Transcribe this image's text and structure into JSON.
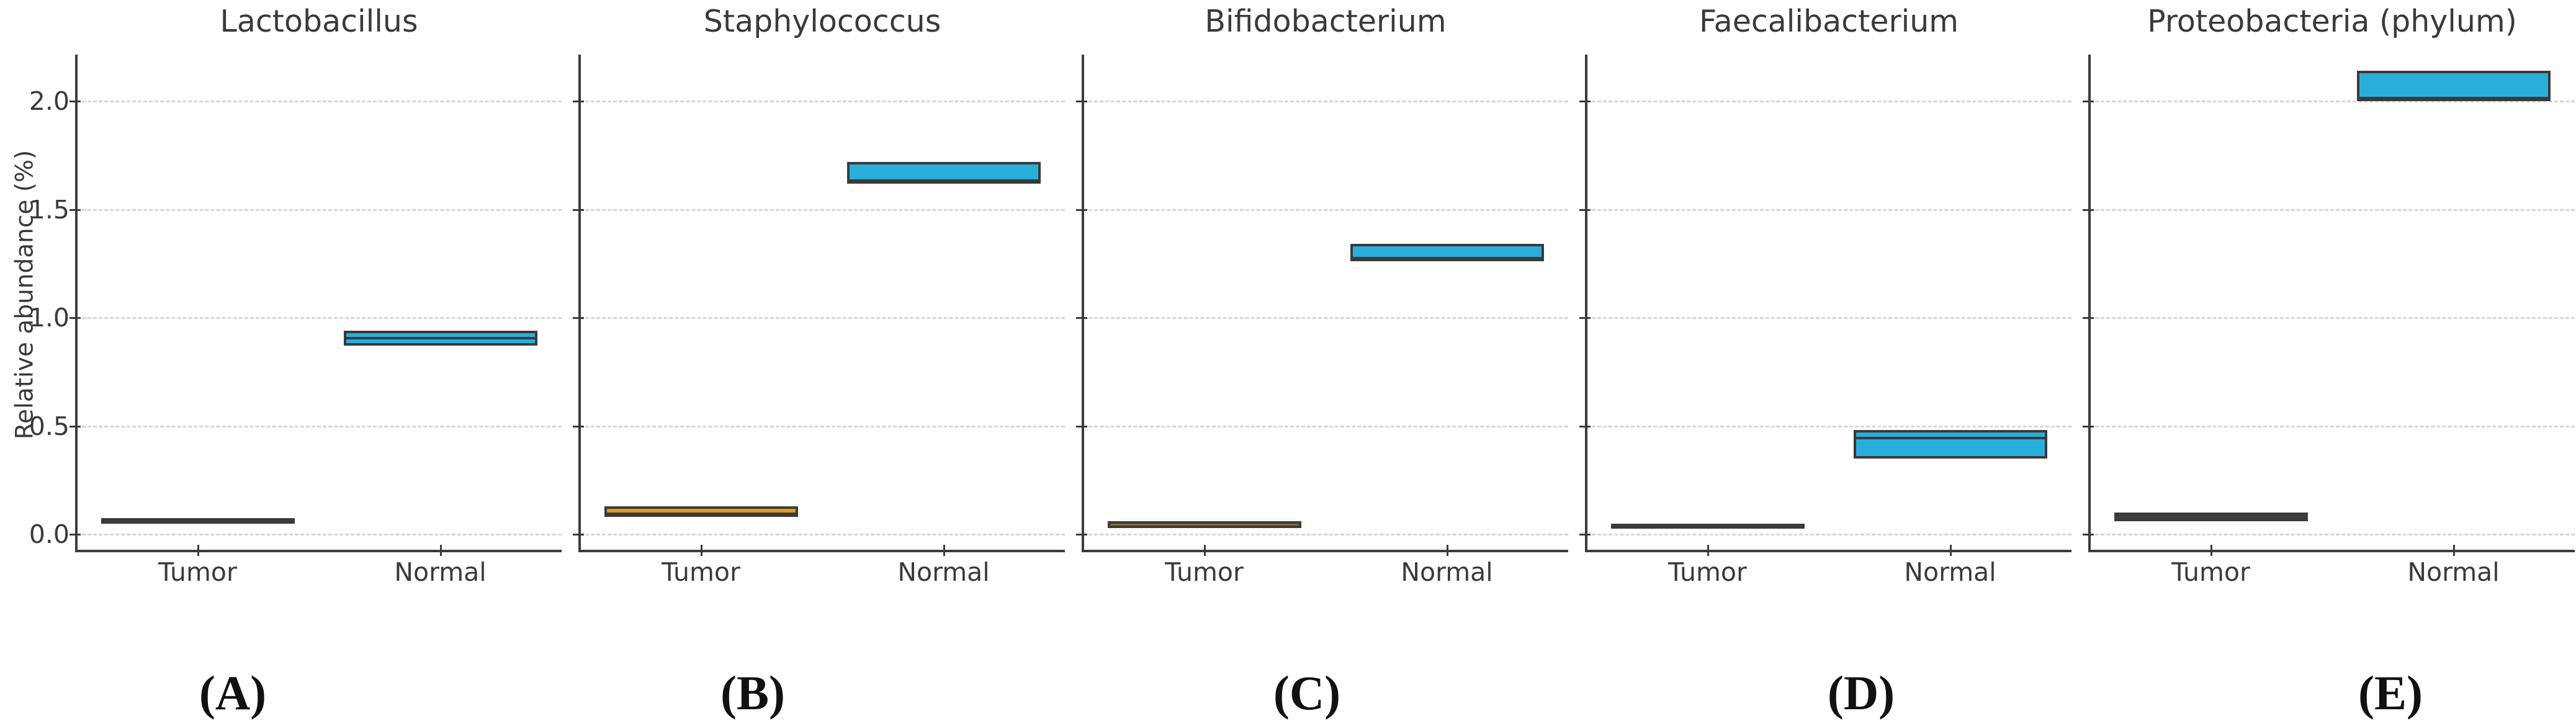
{
  "figure": {
    "ylabel": "Relative abundance (%)",
    "y_tick_labels": [
      "0.0",
      "0.5",
      "1.0",
      "1.5",
      "2.0"
    ],
    "x_categories": [
      "Tumor",
      "Normal"
    ],
    "colors": {
      "normal_box_fill": "#29AEDC",
      "tumor_box_fill_dark": "#3d3d3d",
      "tumor_box_fill_orange": "#E09B20",
      "tumor_box_fill_brown": "#8B6A2A",
      "box_border": "#3a3a3a",
      "gridline": "#d7d7d7",
      "spine": "#3c3c3c",
      "text": "#3a3a3a",
      "panel_letter": "#111111"
    }
  },
  "chart_data": [
    {
      "type": "box",
      "title": "Lactobacillus",
      "panel_label": "(A)",
      "categories": [
        "Tumor",
        "Normal"
      ],
      "ylabel": "Relative abundance (%)",
      "ylim": [
        -0.08,
        2.22
      ],
      "yticks": [
        0.0,
        0.5,
        1.0,
        1.5,
        2.0
      ],
      "grid": "horizontal-dashed",
      "legend": "none",
      "series": [
        {
          "name": "Tumor",
          "q1": 0.05,
          "median": 0.06,
          "q3": 0.075,
          "fill": "#3d3d3d"
        },
        {
          "name": "Normal",
          "q1": 0.87,
          "median": 0.91,
          "q3": 0.94,
          "fill": "#29AEDC"
        }
      ]
    },
    {
      "type": "box",
      "title": "Staphylococcus",
      "panel_label": "(B)",
      "categories": [
        "Tumor",
        "Normal"
      ],
      "ylabel": "Relative abundance (%)",
      "ylim": [
        -0.08,
        2.22
      ],
      "yticks": [
        0.0,
        0.5,
        1.0,
        1.5,
        2.0
      ],
      "grid": "horizontal-dashed",
      "legend": "none",
      "series": [
        {
          "name": "Tumor",
          "q1": 0.08,
          "median": 0.1,
          "q3": 0.13,
          "fill": "#E09B20"
        },
        {
          "name": "Normal",
          "q1": 1.62,
          "median": 1.64,
          "q3": 1.72,
          "fill": "#29AEDC"
        }
      ]
    },
    {
      "type": "box",
      "title": "Bifidobacterium",
      "panel_label": "(C)",
      "categories": [
        "Tumor",
        "Normal"
      ],
      "ylabel": "Relative abundance (%)",
      "ylim": [
        -0.08,
        2.22
      ],
      "yticks": [
        0.0,
        0.5,
        1.0,
        1.5,
        2.0
      ],
      "grid": "horizontal-dashed",
      "legend": "none",
      "series": [
        {
          "name": "Tumor",
          "q1": 0.03,
          "median": 0.045,
          "q3": 0.06,
          "fill": "#8B6A2A"
        },
        {
          "name": "Normal",
          "q1": 1.26,
          "median": 1.28,
          "q3": 1.34,
          "fill": "#29AEDC"
        }
      ]
    },
    {
      "type": "box",
      "title": "Faecalibacterium",
      "panel_label": "(D)",
      "categories": [
        "Tumor",
        "Normal"
      ],
      "ylabel": "Relative abundance (%)",
      "ylim": [
        -0.08,
        2.22
      ],
      "yticks": [
        0.0,
        0.5,
        1.0,
        1.5,
        2.0
      ],
      "grid": "horizontal-dashed",
      "legend": "none",
      "series": [
        {
          "name": "Tumor",
          "q1": 0.03,
          "median": 0.04,
          "q3": 0.05,
          "fill": "#3d3d3d"
        },
        {
          "name": "Normal",
          "q1": 0.35,
          "median": 0.45,
          "q3": 0.48,
          "fill": "#29AEDC"
        }
      ]
    },
    {
      "type": "box",
      "title": "Proteobacteria (phylum)",
      "panel_label": "(E)",
      "categories": [
        "Tumor",
        "Normal"
      ],
      "ylabel": "Relative abundance (%)",
      "ylim": [
        -0.08,
        2.22
      ],
      "yticks": [
        0.0,
        0.5,
        1.0,
        1.5,
        2.0
      ],
      "grid": "horizontal-dashed",
      "legend": "none",
      "series": [
        {
          "name": "Tumor",
          "q1": 0.06,
          "median": 0.08,
          "q3": 0.1,
          "fill": "#3d3d3d"
        },
        {
          "name": "Normal",
          "q1": 2.0,
          "median": 2.02,
          "q3": 2.14,
          "fill": "#29AEDC"
        }
      ]
    }
  ]
}
